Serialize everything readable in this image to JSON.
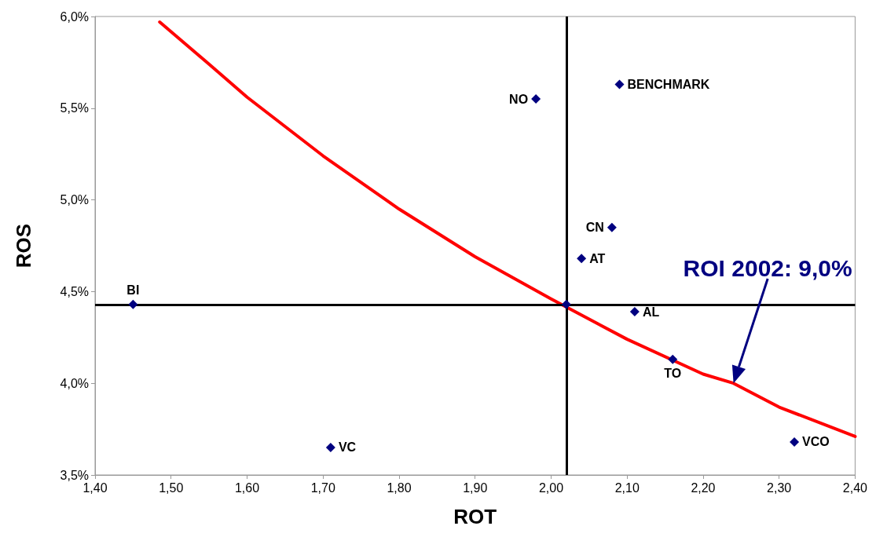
{
  "chart_data": {
    "type": "scatter",
    "xlabel": "ROT",
    "ylabel": "ROS",
    "xlim": [
      1.4,
      2.4
    ],
    "xticks": [
      {
        "value": 1.4,
        "label": "1,40"
      },
      {
        "value": 1.5,
        "label": "1,50"
      },
      {
        "value": 1.6,
        "label": "1,60"
      },
      {
        "value": 1.7,
        "label": "1,70"
      },
      {
        "value": 1.8,
        "label": "1,80"
      },
      {
        "value": 1.9,
        "label": "1,90"
      },
      {
        "value": 2.0,
        "label": "2,00"
      },
      {
        "value": 2.1,
        "label": "2,10"
      },
      {
        "value": 2.2,
        "label": "2,20"
      },
      {
        "value": 2.3,
        "label": "2,30"
      },
      {
        "value": 2.4,
        "label": "2,40"
      }
    ],
    "ylim": [
      3.5,
      6.0
    ],
    "yticks": [
      {
        "value": 3.5,
        "label": "3,5%"
      },
      {
        "value": 4.0,
        "label": "4,0%"
      },
      {
        "value": 4.5,
        "label": "4,5%"
      },
      {
        "value": 5.0,
        "label": "5,0%"
      },
      {
        "value": 5.5,
        "label": "5,5%"
      },
      {
        "value": 6.0,
        "label": "6,0%"
      }
    ],
    "series": [
      {
        "marker": "diamond",
        "color": "#000080",
        "x": [
          1.45,
          1.71,
          1.98,
          2.09,
          2.08,
          2.04,
          2.02,
          2.11,
          2.16,
          2.32
        ],
        "values": [
          4.43,
          3.65,
          5.55,
          5.63,
          4.85,
          4.68,
          4.43,
          4.39,
          4.13,
          3.68
        ],
        "value_labels": [
          "BI",
          "VC",
          "NO",
          "BENCHMARK",
          "CN",
          "AT",
          null,
          "AL",
          "TO",
          "VCO"
        ]
      },
      {
        "type": "line",
        "color": "#ff0000",
        "x": [
          1.485,
          1.55,
          1.6,
          1.7,
          1.8,
          1.9,
          2.0,
          2.1,
          2.2,
          2.24,
          2.3,
          2.4
        ],
        "values": [
          5.97,
          5.74,
          5.56,
          5.24,
          4.95,
          4.69,
          4.46,
          4.24,
          4.05,
          4.0,
          3.87,
          3.71
        ]
      }
    ],
    "ref_lines": [
      {
        "axis": "x",
        "value": 2.02,
        "color": "#000000"
      },
      {
        "axis": "y",
        "value": 4.43,
        "color": "#000000"
      }
    ],
    "annotations": [
      "ROI 2002: 9,0%"
    ],
    "grid": false
  }
}
